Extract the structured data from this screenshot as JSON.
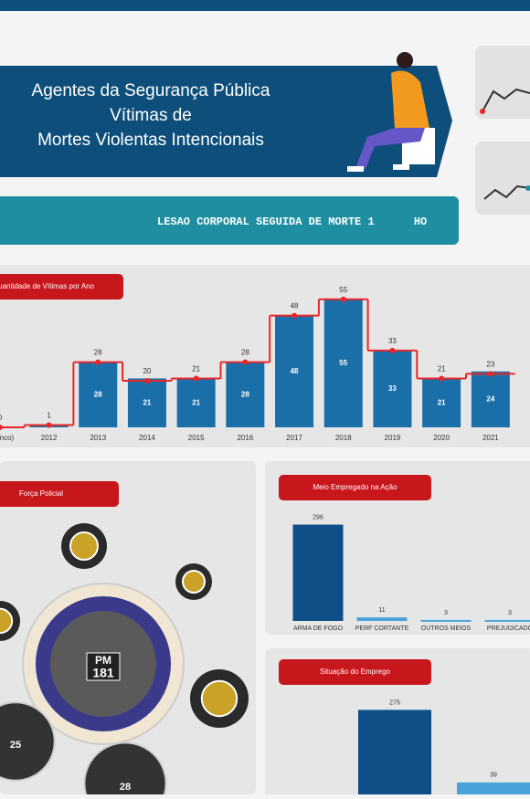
{
  "header": {
    "title_lines": [
      "Agentes da Segurança Pública",
      "Vítimas de",
      "Mortes Violentas Intencionais"
    ]
  },
  "ticker": "LESAO CORPORAL SEGUIDA DE MORTE 1      HO",
  "chart_data": [
    {
      "type": "bar",
      "title": "Quantidade de Vítimas por Ano",
      "categories": [
        "(Branco)",
        "2012",
        "2013",
        "2014",
        "2015",
        "2016",
        "2017",
        "2018",
        "2019",
        "2020",
        "2021"
      ],
      "series": [
        {
          "color": "#1b6fa8",
          "values": [
            0,
            1,
            28,
            21,
            21,
            28,
            48,
            55,
            33,
            21,
            24
          ]
        },
        {
          "color": "#e8262a",
          "values": [
            0,
            1,
            28,
            20,
            21,
            28,
            48,
            55,
            33,
            21,
            23
          ]
        }
      ],
      "ylim": [
        0,
        60
      ]
    },
    {
      "type": "bubble",
      "title": "Força Policial",
      "bubbles": [
        {
          "label": "PM",
          "value": 181
        },
        {
          "value": 25
        },
        {
          "value": 28
        }
      ]
    },
    {
      "type": "bar",
      "title": "Meio Empregado na Ação",
      "categories": [
        "ARMA DE FOGO",
        "PERF CORTANTE",
        "OUTROS MEIOS",
        "PREJUDICADO"
      ],
      "values": [
        296,
        11,
        3,
        3
      ],
      "color": "#0d4f86",
      "ylim": [
        0,
        320
      ]
    },
    {
      "type": "bar",
      "title": "Situação do Emprego",
      "categories": [
        null,
        null
      ],
      "values": [
        275,
        39
      ],
      "color": "#0d4f86",
      "ylim": [
        0,
        300
      ]
    }
  ]
}
